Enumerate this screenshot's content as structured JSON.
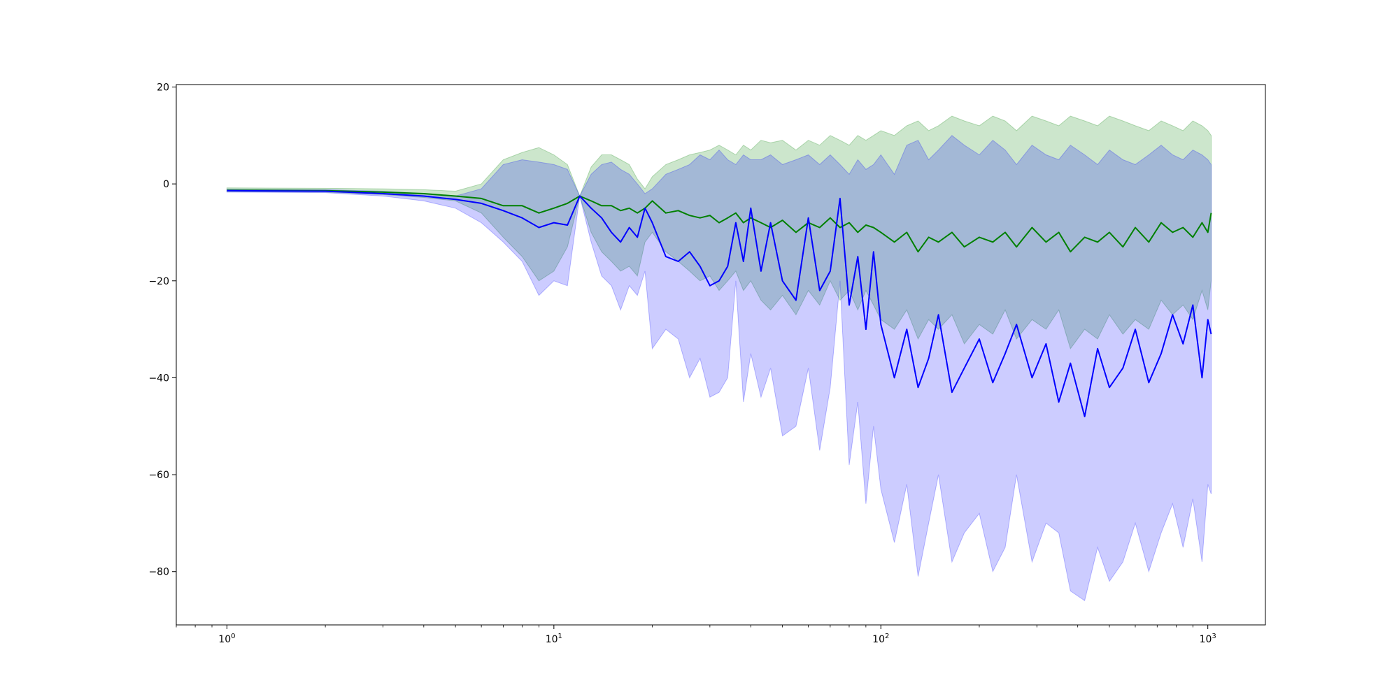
{
  "chart_data": {
    "type": "line",
    "title": "",
    "xlabel": "",
    "ylabel": "",
    "x_scale": "log",
    "xlim": [
      0.7,
      1500
    ],
    "ylim": [
      -91,
      20.5
    ],
    "grid": false,
    "x_ticks": [
      {
        "value": 1,
        "base": "10",
        "exp": "0"
      },
      {
        "value": 10,
        "base": "10",
        "exp": "1"
      },
      {
        "value": 100,
        "base": "10",
        "exp": "2"
      },
      {
        "value": 1000,
        "base": "10",
        "exp": "3"
      }
    ],
    "y_ticks": [
      {
        "value": 20,
        "label": "20"
      },
      {
        "value": 0,
        "label": "0"
      },
      {
        "value": -20,
        "label": "−20"
      },
      {
        "value": -40,
        "label": "−40"
      },
      {
        "value": -60,
        "label": "−60"
      },
      {
        "value": -80,
        "label": "−80"
      }
    ],
    "x": [
      1,
      2,
      3,
      4,
      5,
      6,
      7,
      8,
      9,
      10,
      11,
      12,
      13,
      14,
      15,
      16,
      17,
      18,
      19,
      20,
      22,
      24,
      26,
      28,
      30,
      32,
      34,
      36,
      38,
      40,
      43,
      46,
      50,
      55,
      60,
      65,
      70,
      75,
      80,
      85,
      90,
      95,
      100,
      110,
      120,
      130,
      140,
      150,
      165,
      180,
      200,
      220,
      240,
      260,
      290,
      320,
      350,
      380,
      420,
      460,
      500,
      550,
      600,
      660,
      720,
      780,
      840,
      900,
      960,
      1000,
      1024
    ],
    "series": [
      {
        "color": "#008000",
        "band_color": "#008000",
        "y": [
          -1.3,
          -1.4,
          -1.7,
          -2,
          -2.5,
          -3,
          -4.5,
          -4.5,
          -6,
          -5,
          -4,
          -2.5,
          -3.5,
          -4.5,
          -4.5,
          -5.5,
          -5,
          -6,
          -5,
          -3.5,
          -6,
          -5.5,
          -6.5,
          -7,
          -6.5,
          -8,
          -7,
          -6,
          -8,
          -7,
          -8,
          -9,
          -7.5,
          -10,
          -8,
          -9,
          -7,
          -9,
          -8,
          -10,
          -8.5,
          -9,
          -10,
          -12,
          -10,
          -14,
          -11,
          -12,
          -10,
          -13,
          -11,
          -12,
          -10,
          -13,
          -9,
          -12,
          -10,
          -14,
          -11,
          -12,
          -10,
          -13,
          -9,
          -12,
          -8,
          -10,
          -9,
          -11,
          -8,
          -10,
          -6
        ],
        "upper": [
          -0.8,
          -0.9,
          -1,
          -1.2,
          -1.5,
          0,
          5,
          6.5,
          7.5,
          6,
          4,
          -2.5,
          3.5,
          6,
          6,
          5,
          4,
          1,
          -1,
          1.5,
          4,
          5,
          6,
          6.5,
          7,
          8,
          7,
          6,
          8,
          7,
          9,
          8.5,
          9,
          7,
          9,
          8,
          10,
          9,
          8,
          10,
          9,
          10,
          11,
          10,
          12,
          13,
          11,
          12,
          14,
          13,
          12,
          14,
          13,
          11,
          14,
          13,
          12,
          14,
          13,
          12,
          14,
          13,
          12,
          11,
          13,
          12,
          11,
          13,
          12,
          11,
          10
        ],
        "lower": [
          -1.6,
          -1.7,
          -2.2,
          -2.8,
          -3.5,
          -6,
          -11,
          -15,
          -20,
          -18,
          -13,
          -2.5,
          -10,
          -14,
          -16,
          -18,
          -17,
          -19,
          -12,
          -10,
          -14,
          -16,
          -18,
          -20,
          -19,
          -22,
          -20,
          -18,
          -22,
          -20,
          -24,
          -26,
          -23,
          -27,
          -22,
          -25,
          -20,
          -24,
          -22,
          -26,
          -22,
          -25,
          -28,
          -30,
          -26,
          -32,
          -28,
          -30,
          -27,
          -33,
          -29,
          -31,
          -26,
          -32,
          -28,
          -30,
          -26,
          -34,
          -30,
          -32,
          -27,
          -31,
          -28,
          -30,
          -24,
          -27,
          -25,
          -28,
          -22,
          -26,
          -20
        ]
      },
      {
        "color": "#0000ff",
        "band_color": "#0000ff",
        "y": [
          -1.4,
          -1.5,
          -2,
          -2.5,
          -3.2,
          -4,
          -5.5,
          -7,
          -9,
          -8,
          -8.5,
          -2.5,
          -5,
          -7,
          -10,
          -12,
          -9,
          -11,
          -5,
          -8,
          -15,
          -16,
          -14,
          -17,
          -21,
          -20,
          -17,
          -8,
          -16,
          -5,
          -18,
          -8,
          -20,
          -24,
          -7,
          -22,
          -18,
          -3,
          -25,
          -15,
          -30,
          -14,
          -29,
          -40,
          -30,
          -42,
          -36,
          -27,
          -43,
          -38,
          -32,
          -41,
          -35,
          -29,
          -40,
          -33,
          -45,
          -37,
          -48,
          -34,
          -42,
          -38,
          -30,
          -41,
          -35,
          -27,
          -33,
          -25,
          -40,
          -28,
          -31
        ],
        "upper": [
          -1.1,
          -1.2,
          -1.5,
          -2,
          -2.5,
          -1,
          4,
          5,
          4.5,
          4,
          3,
          -2.5,
          2,
          4,
          4.5,
          3,
          2,
          0,
          -2,
          -1,
          2,
          3,
          4,
          6,
          5,
          7,
          5,
          4,
          6,
          5,
          5,
          6,
          4,
          5,
          6,
          4,
          6,
          4,
          2,
          5,
          3,
          4,
          6,
          2,
          8,
          9,
          5,
          7,
          10,
          8,
          6,
          9,
          7,
          4,
          8,
          6,
          5,
          8,
          6,
          4,
          7,
          5,
          4,
          6,
          8,
          6,
          5,
          7,
          6,
          5,
          4
        ],
        "lower": [
          -1.7,
          -1.8,
          -2.5,
          -3.5,
          -5,
          -8,
          -12,
          -16,
          -23,
          -20,
          -21,
          -2.5,
          -12,
          -19,
          -21,
          -26,
          -21,
          -23,
          -18,
          -34,
          -30,
          -32,
          -40,
          -36,
          -44,
          -43,
          -40,
          -20,
          -45,
          -35,
          -44,
          -38,
          -52,
          -50,
          -38,
          -55,
          -42,
          -20,
          -58,
          -45,
          -66,
          -50,
          -63,
          -74,
          -62,
          -81,
          -70,
          -60,
          -78,
          -72,
          -68,
          -80,
          -75,
          -60,
          -78,
          -70,
          -72,
          -84,
          -86,
          -75,
          -82,
          -78,
          -70,
          -80,
          -72,
          -66,
          -75,
          -65,
          -78,
          -62,
          -64
        ]
      }
    ]
  }
}
